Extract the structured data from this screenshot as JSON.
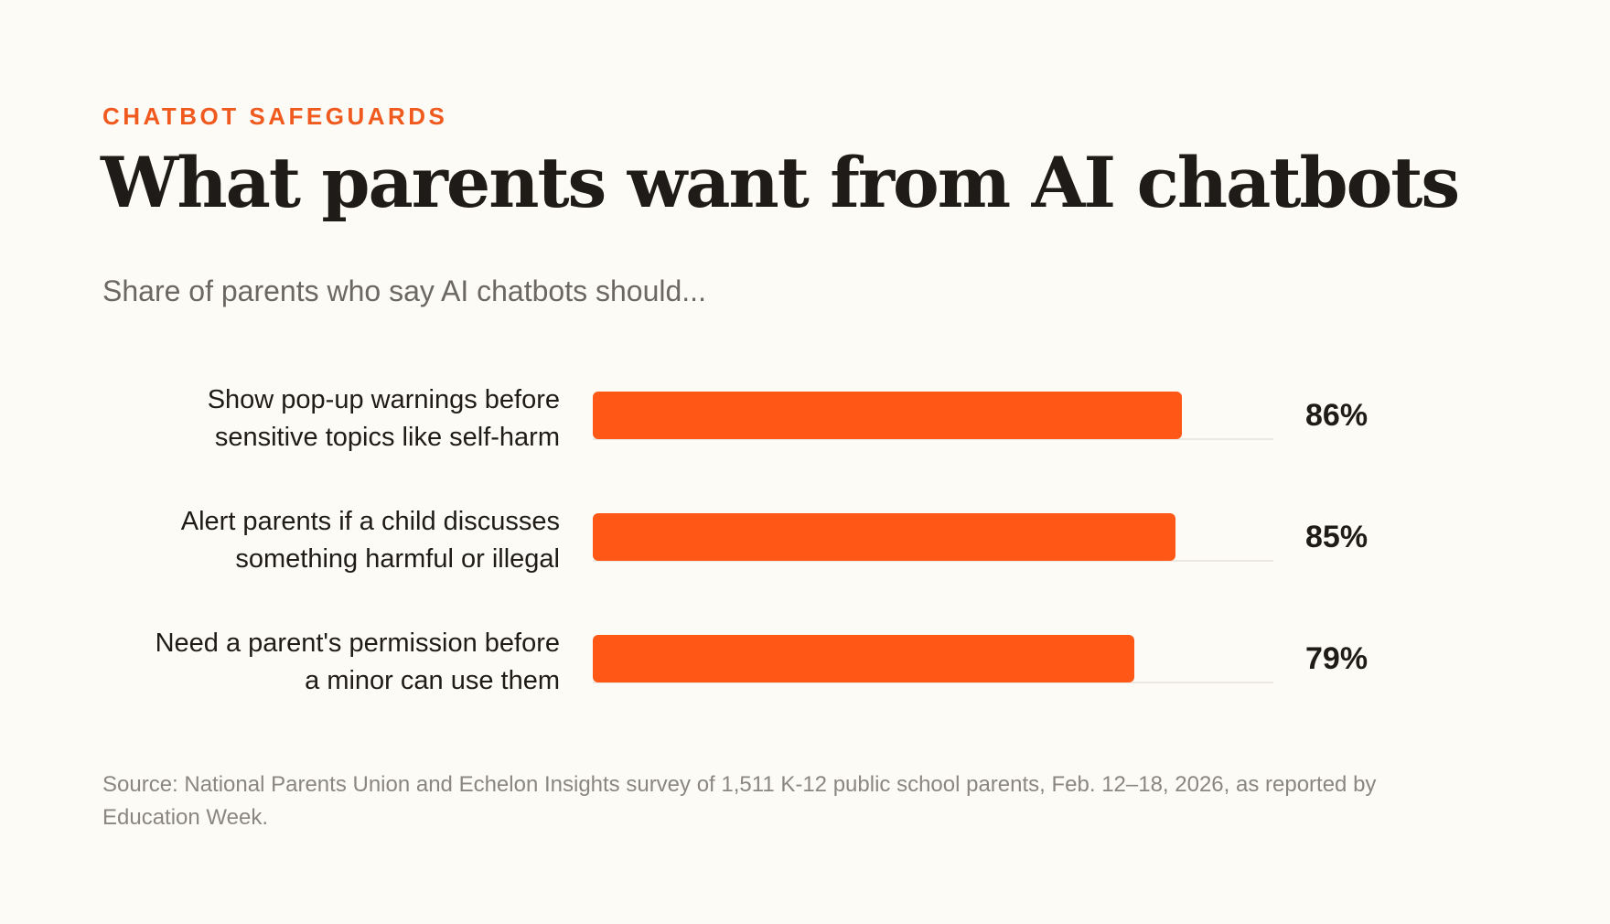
{
  "header": {
    "eyebrow": "CHATBOT SAFEGUARDS",
    "title": "What parents want from AI chatbots",
    "subtitle": "Share of parents who say AI chatbots should..."
  },
  "chart_data": {
    "type": "bar",
    "orientation": "horizontal",
    "categories": [
      [
        "Show pop-up warnings before",
        "sensitive topics like self-harm"
      ],
      [
        "Alert parents if a child discusses",
        "something harmful or illegal"
      ],
      [
        "Need a parent's permission before",
        "a minor can use them"
      ]
    ],
    "values": [
      86,
      85,
      79
    ],
    "value_labels": [
      "86%",
      "85%",
      "79%"
    ],
    "xlim": [
      0,
      100
    ],
    "grid": false,
    "bar_color": "#FF5716"
  },
  "footer": {
    "source": "Source: National Parents Union and Echelon Insights survey of 1,511 K-12 public school parents, Feb. 12–18, 2026, as reported by Education Week."
  }
}
